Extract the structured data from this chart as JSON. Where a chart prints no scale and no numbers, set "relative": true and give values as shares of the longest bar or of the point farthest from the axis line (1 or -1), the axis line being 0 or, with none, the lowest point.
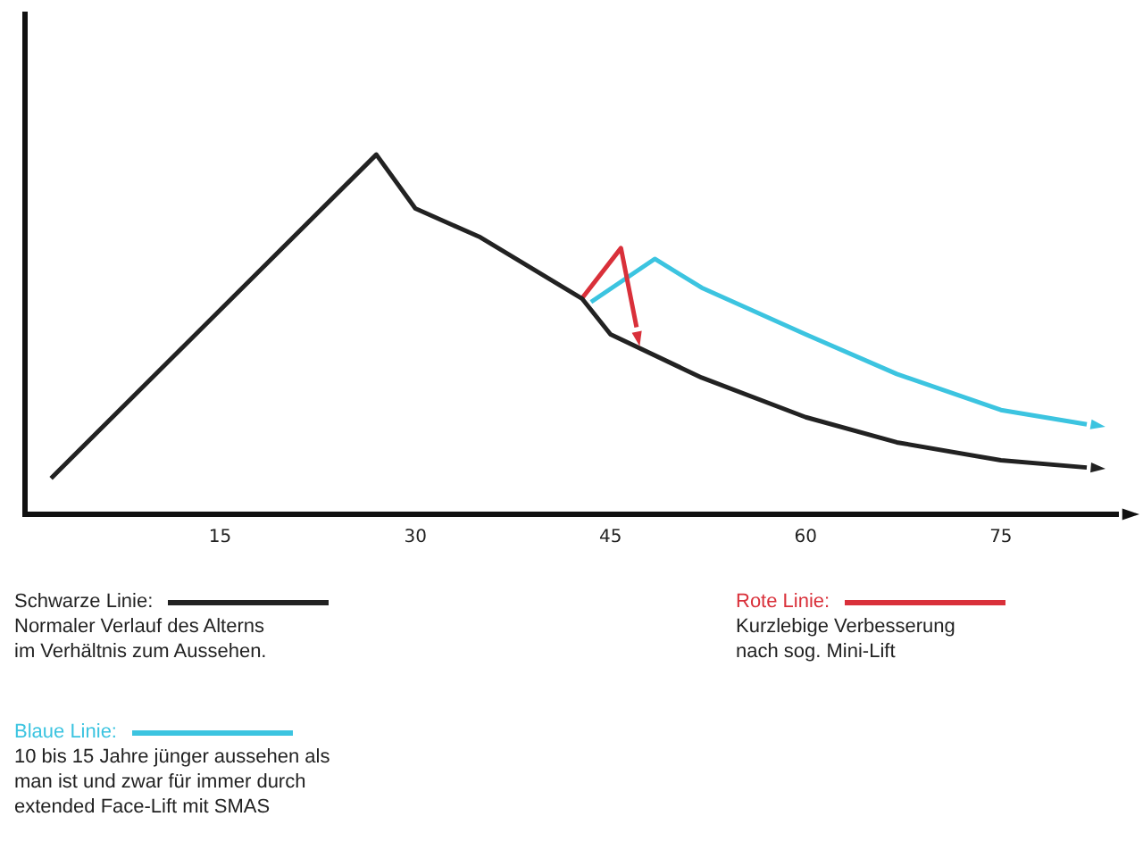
{
  "chart_data": {
    "type": "line",
    "relative": true,
    "xlim": [
      0,
      84
    ],
    "xticks": [
      15,
      30,
      45,
      60,
      75
    ],
    "grid": false,
    "legend": "bottom",
    "marker": "none",
    "line_style": "solid",
    "series": [
      {
        "name": "Schwarze Linie:",
        "color": "#222222",
        "x": [
          2,
          27,
          30,
          35,
          42.8,
          45,
          52,
          60,
          67,
          75,
          81.6
        ],
        "values": [
          0.1,
          1,
          0.85,
          0.77,
          0.6,
          0.5,
          0.38,
          0.27,
          0.2,
          0.15,
          0.13
        ]
      },
      {
        "name": "Rote Linie:",
        "color": "#d9303a",
        "x": [
          42.8,
          45.8,
          47
        ],
        "values": [
          0.6,
          0.74,
          0.52
        ]
      },
      {
        "name": "Blaue Linie:",
        "color": "#3cc4e0",
        "x": [
          43.5,
          48.4,
          52,
          60,
          67,
          75,
          81.6
        ],
        "values": [
          0.59,
          0.71,
          0.63,
          0.5,
          0.39,
          0.29,
          0.25
        ]
      }
    ],
    "annotations": [
      "Normaler Verlauf des Alterns\nim Verhältnis zum Aussehen.",
      "Kurzlebige Verbesserung\nnach sog. Mini-Lift",
      "10 bis 15 Jahre jünger aussehen als\nman ist und zwar für immer durch\nextended Face-Lift mit SMAS"
    ]
  }
}
